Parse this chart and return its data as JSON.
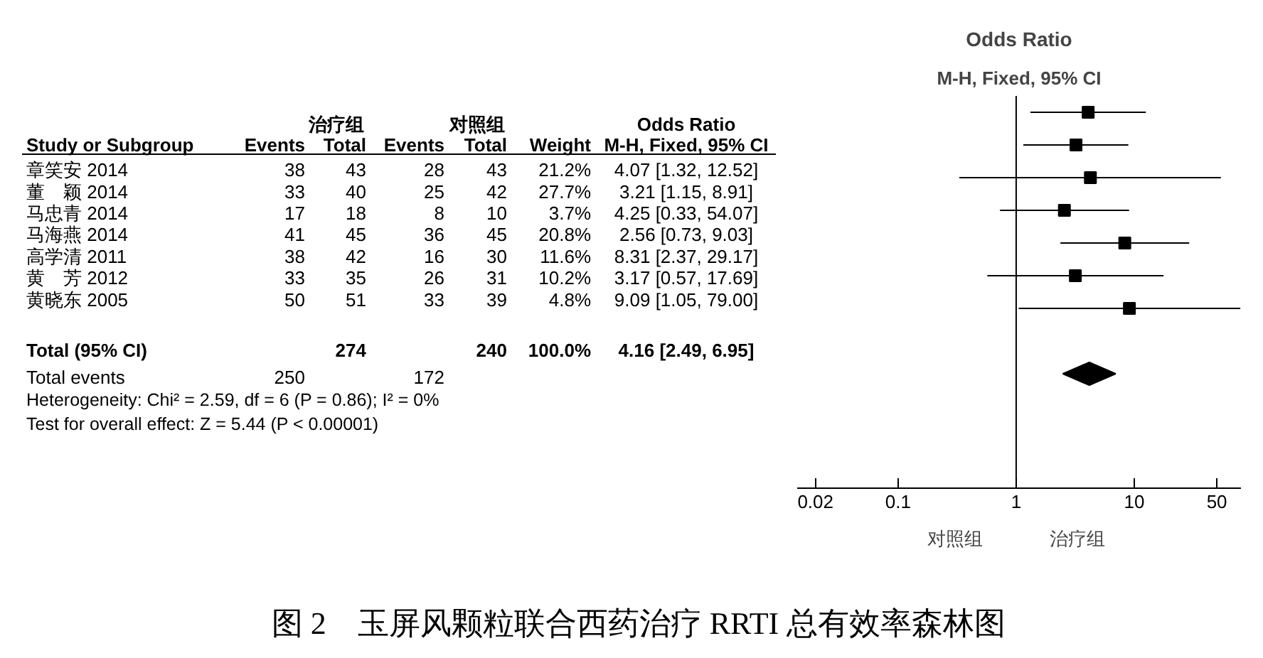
{
  "chart_data": [
    {
      "type": "other",
      "ylabel": "Study or Subgroup",
      "categories": [
        "Events",
        "Total",
        "Events",
        "Total",
        "Weight",
        "M-H, Fixed, 95% CI"
      ],
      "y_categories": [
        "章笑安 2014",
        "董　颖 2014",
        "马忠青 2014",
        "马海燕 2014",
        "高学清 2011",
        "黄　芳 2012",
        "黄晓东 2005",
        null,
        "Total (95% CI)",
        "Total events"
      ],
      "cell_labels": [
        [
          "38",
          "43",
          "28",
          "43",
          "21.2%",
          "4.07 [1.32, 12.52]"
        ],
        [
          "33",
          "40",
          "25",
          "42",
          "27.7%",
          "3.21 [1.15, 8.91]"
        ],
        [
          "17",
          "18",
          "8",
          "10",
          "3.7%",
          "4.25 [0.33, 54.07]"
        ],
        [
          "41",
          "45",
          "36",
          "45",
          "20.8%",
          "2.56 [0.73, 9.03]"
        ],
        [
          "38",
          "42",
          "16",
          "30",
          "11.6%",
          "8.31 [2.37, 29.17]"
        ],
        [
          "33",
          "35",
          "26",
          "31",
          "10.2%",
          "3.17 [0.57, 17.69]"
        ],
        [
          "50",
          "51",
          "33",
          "39",
          "4.8%",
          "9.09 [1.05, 79.00]"
        ],
        [
          null,
          null,
          null,
          null,
          null,
          null
        ],
        [
          null,
          "274",
          null,
          "240",
          "100.0%",
          "4.16 [2.49, 6.95]"
        ],
        [
          "250",
          null,
          "172",
          null,
          null,
          null
        ]
      ],
      "annotations": [
        "治疗组",
        "对照组",
        "Odds Ratio",
        "Heterogeneity: Chi² = 2.59, df = 6 (P = 0.86); I² = 0%",
        "Test for overall effect: Z = 5.44 (P < 0.00001)",
        "图 2　玉屏风颗粒联合西药治疗 RRTI 总有效率森林图"
      ]
    },
    {
      "type": "scatter",
      "orientation": "horizontal",
      "title": "Odds Ratio",
      "subtitle": "M-H, Fixed, 95% CI",
      "categories": [
        null,
        null,
        null,
        null,
        null,
        null,
        null,
        null,
        null,
        null,
        null,
        null
      ],
      "series": [
        {
          "color": "#000000",
          "marker": "square",
          "values": [
            4.07,
            3.21,
            4.25,
            2.56,
            8.31,
            3.17,
            9.09,
            null,
            null,
            null,
            null,
            null
          ],
          "errors": [
            [
              1.32,
              12.52
            ],
            [
              1.15,
              8.91
            ],
            [
              0.33,
              54.07
            ],
            [
              0.73,
              9.03
            ],
            [
              2.37,
              29.17
            ],
            [
              0.57,
              17.69
            ],
            [
              1.05,
              79.0
            ],
            null,
            null,
            null,
            null,
            null
          ]
        },
        {
          "color": "#000000",
          "marker": "diamond",
          "values": [
            null,
            null,
            null,
            null,
            null,
            null,
            null,
            null,
            4.16,
            null,
            null,
            null
          ],
          "errors": [
            null,
            null,
            null,
            null,
            null,
            null,
            null,
            null,
            [
              2.49,
              6.95
            ],
            null,
            null,
            null
          ]
        }
      ],
      "log": "x",
      "xlim": [
        0.014,
        80
      ],
      "xticks": [
        0.02,
        0.1,
        1,
        10,
        50
      ],
      "tick_labels": "x",
      "grid": false,
      "ref_lines": [
        {
          "axis": "x",
          "value": 1
        }
      ],
      "annotations": [
        "对照组",
        "治疗组"
      ]
    }
  ]
}
